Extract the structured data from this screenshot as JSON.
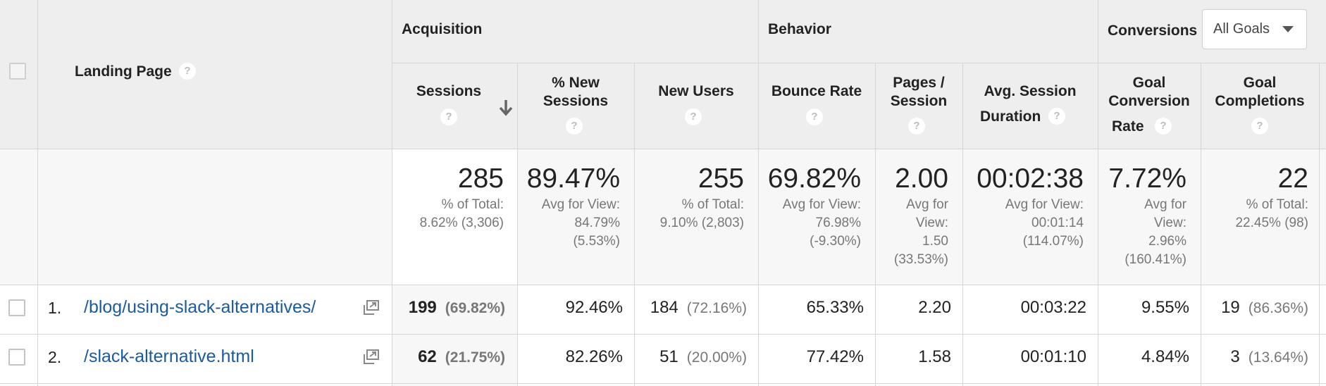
{
  "header": {
    "landing_page_label": "Landing Page",
    "groups": {
      "acquisition": "Acquisition",
      "behavior": "Behavior",
      "conversions": "Conversions"
    },
    "goal_select": {
      "selected": "All Goals"
    },
    "columns": {
      "sessions": "Sessions",
      "pct_new_sessions_1": "% New",
      "pct_new_sessions_2": "Sessions",
      "new_users": "New Users",
      "bounce_rate": "Bounce Rate",
      "pages_session_1": "Pages /",
      "pages_session_2": "Session",
      "avg_duration_1": "Avg. Session",
      "avg_duration_2": "Duration",
      "goal_conv_1": "Goal",
      "goal_conv_2": "Conversion",
      "goal_conv_3": "Rate",
      "goal_comp_1": "Goal",
      "goal_comp_2": "Completions"
    },
    "help_glyph": "?"
  },
  "totals": {
    "sessions": {
      "value": "285",
      "sub1": "% of Total:",
      "sub2": "8.62% (3,306)"
    },
    "pct_new_sessions": {
      "value": "89.47%",
      "sub1": "Avg for View:",
      "sub2": "84.79%",
      "sub3": "(5.53%)"
    },
    "new_users": {
      "value": "255",
      "sub1": "% of Total:",
      "sub2": "9.10% (2,803)"
    },
    "bounce_rate": {
      "value": "69.82%",
      "sub1": "Avg for View:",
      "sub2": "76.98%",
      "sub3": "(-9.30%)"
    },
    "pages_session": {
      "value": "2.00",
      "sub1": "Avg for",
      "sub2": "View:",
      "sub3": "1.50",
      "sub4": "(33.53%)"
    },
    "avg_duration": {
      "value": "00:02:38",
      "sub1": "Avg for View:",
      "sub2": "00:01:14",
      "sub3": "(114.07%)"
    },
    "goal_conv_rate": {
      "value": "7.72%",
      "sub1": "Avg for",
      "sub2": "View:",
      "sub3": "2.96%",
      "sub4": "(160.41%)"
    },
    "goal_completions": {
      "value": "22",
      "sub1": "% of Total:",
      "sub2": "22.45% (98)"
    }
  },
  "rows": [
    {
      "num": "1.",
      "page": "/blog/using-slack-alternatives/",
      "sessions": "199",
      "sessions_pct": "(69.82%)",
      "pct_new_sessions": "92.46%",
      "new_users": "184",
      "new_users_pct": "(72.16%)",
      "bounce_rate": "65.33%",
      "pages_session": "2.20",
      "avg_duration": "00:03:22",
      "goal_conv_rate": "9.55%",
      "goal_completions": "19",
      "goal_completions_pct": "(86.36%)"
    },
    {
      "num": "2.",
      "page": "/slack-alternative.html",
      "sessions": "62",
      "sessions_pct": "(21.75%)",
      "pct_new_sessions": "82.26%",
      "new_users": "51",
      "new_users_pct": "(20.00%)",
      "bounce_rate": "77.42%",
      "pages_session": "1.58",
      "avg_duration": "00:01:10",
      "goal_conv_rate": "4.84%",
      "goal_completions": "3",
      "goal_completions_pct": "(13.64%)"
    }
  ]
}
